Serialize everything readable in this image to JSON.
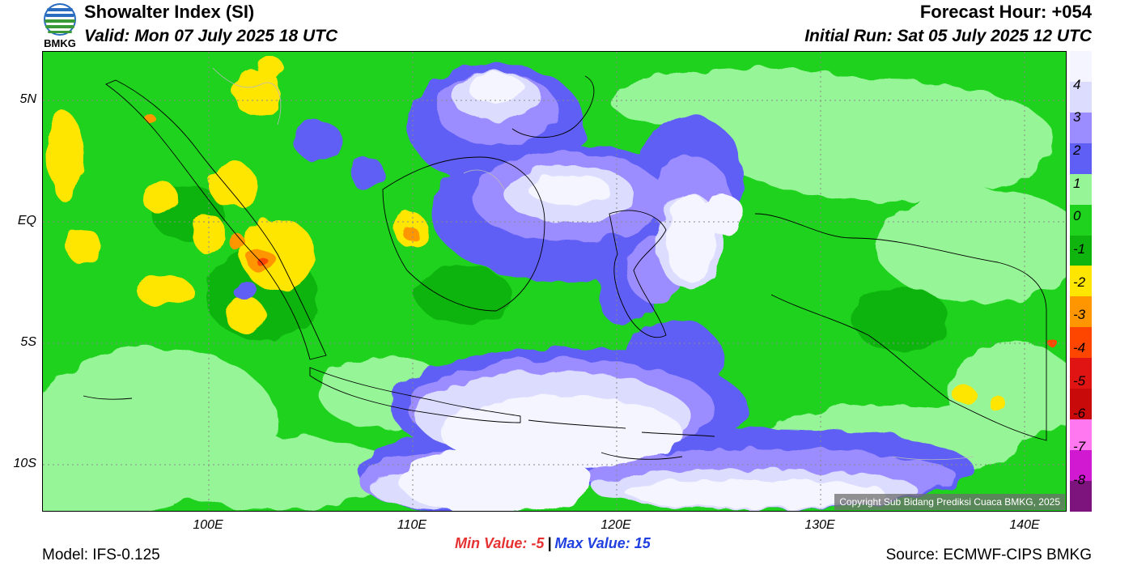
{
  "header": {
    "logo_text": "BMKG",
    "title": "Showalter Index (SI)",
    "valid": "Valid: Mon 07 July 2025 18 UTC",
    "forecast_hour": "Forecast Hour: +054",
    "initial_run": "Initial Run: Sat 05 July 2025 12 UTC"
  },
  "map": {
    "lat_labels": [
      "5N",
      "EQ",
      "5S",
      "10S"
    ],
    "lon_labels": [
      "100E",
      "110E",
      "120E",
      "130E",
      "140E"
    ],
    "copyright": "Copyright Sub Bidang Prediksi Cuaca BMKG, 2025",
    "colors": {
      "base": "#1ed21e",
      "light_green": "#96f596",
      "dark_green": "#0fb40f",
      "yellow": "#ffe600",
      "orange": "#ff9600",
      "red": "#ff4600",
      "light_purple": "#dcdcff",
      "purple": "#9b8cff",
      "blue_purple": "#5f5ff5",
      "white": "#f5f5ff"
    }
  },
  "legend": {
    "labels": [
      "4",
      "3",
      "2",
      "1",
      "0",
      "-1",
      "-2",
      "-3",
      "-4",
      "-5",
      "-6",
      "-7",
      "-8"
    ],
    "colors": [
      "#f5f5ff",
      "#dcdcff",
      "#9b8cff",
      "#5f5ff5",
      "#96f596",
      "#1ed21e",
      "#0fb40f",
      "#ffe600",
      "#ff9600",
      "#ff4600",
      "#e11414",
      "#c80a0a",
      "#ff78f0",
      "#d219d2",
      "#7d147d"
    ]
  },
  "footer": {
    "min_label": "Min Value:  -5",
    "separator": "|",
    "max_label": "Max Value:  15",
    "model": "Model: IFS-0.125",
    "source": "Source: ECMWF-CIPS BMKG"
  }
}
